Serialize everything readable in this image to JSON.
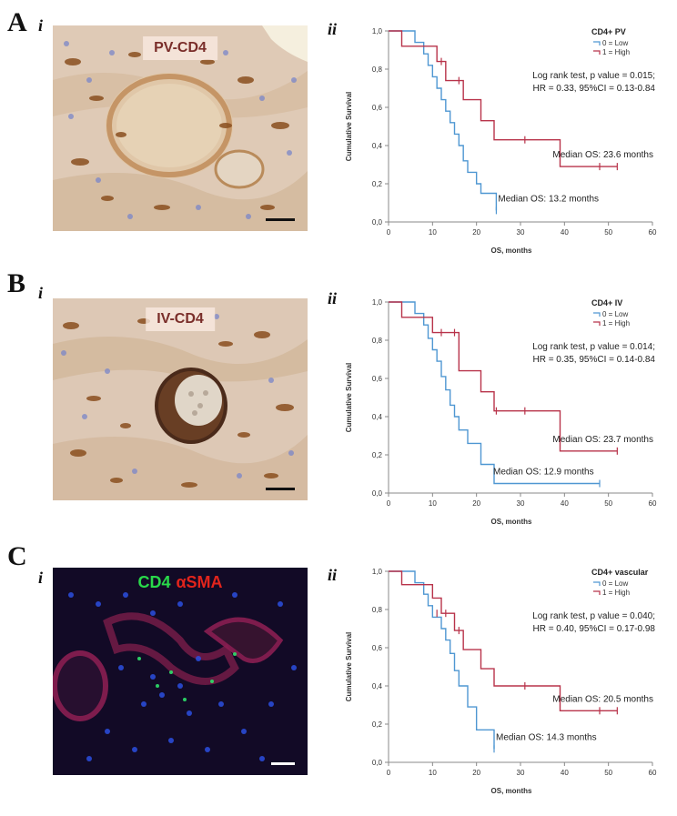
{
  "panels": [
    {
      "letter": "A",
      "micro_label": "i",
      "plot_label": "ii",
      "stain_label": "PV-CD4"
    },
    {
      "letter": "B",
      "micro_label": "i",
      "plot_label": "ii",
      "stain_label": "IV-CD4"
    },
    {
      "letter": "C",
      "micro_label": "i",
      "plot_label": "ii",
      "stain_label_green": "CD4",
      "stain_label_red": "αSMA"
    }
  ],
  "colors": {
    "low": "#4f97d2",
    "high": "#b8334a",
    "ihc_background": "#ddc9b6",
    "fluor_background": "#120a26"
  },
  "chart_data": [
    {
      "type": "line",
      "title": "CD4+ PV",
      "xlabel": "OS, months",
      "ylabel": "Cumulative Survival",
      "xlim": [
        0,
        60
      ],
      "ylim": [
        0,
        1.0
      ],
      "x_ticks": [
        "0",
        "10",
        "20",
        "30",
        "40",
        "50",
        "60"
      ],
      "y_ticks": [
        "0,0",
        "0,2",
        "0,4",
        "0,6",
        "0,8",
        "1,0"
      ],
      "legend": [
        "0 = Low",
        "1 = High"
      ],
      "legend_position": "top-right",
      "annotation": [
        "Log rank test, p value = 0.015;",
        "HR = 0.33, 95%CI = 0.13-0.84"
      ],
      "median_labels": {
        "high": "Median OS: 23.6 months",
        "low": "Median OS: 13.2 months"
      },
      "series": [
        {
          "name": "0 = Low",
          "color_key": "low",
          "x": [
            0,
            6,
            8,
            9,
            10,
            11,
            12,
            13,
            14,
            15,
            16,
            17,
            18,
            20,
            21,
            24.5
          ],
          "y": [
            1.0,
            0.94,
            0.88,
            0.82,
            0.76,
            0.7,
            0.64,
            0.58,
            0.52,
            0.46,
            0.4,
            0.32,
            0.26,
            0.2,
            0.15,
            0.06
          ],
          "censored": [
            {
              "x": 24.5,
              "y": 0.06
            }
          ]
        },
        {
          "name": "1 = High",
          "color_key": "high",
          "x": [
            0,
            3,
            11,
            13,
            17,
            21,
            24,
            39,
            52
          ],
          "y": [
            1.0,
            0.92,
            0.84,
            0.74,
            0.64,
            0.53,
            0.43,
            0.29,
            0.29
          ],
          "censored": [
            {
              "x": 12,
              "y": 0.84
            },
            {
              "x": 16,
              "y": 0.74
            },
            {
              "x": 31,
              "y": 0.43
            },
            {
              "x": 48,
              "y": 0.29
            },
            {
              "x": 52,
              "y": 0.29
            }
          ]
        }
      ]
    },
    {
      "type": "line",
      "title": "CD4+ IV",
      "xlabel": "OS, months",
      "ylabel": "Cumulative Survival",
      "xlim": [
        0,
        60
      ],
      "ylim": [
        0,
        1.0
      ],
      "x_ticks": [
        "0",
        "10",
        "20",
        "30",
        "40",
        "50",
        "60"
      ],
      "y_ticks": [
        "0,0",
        "0,2",
        "0,4",
        "0,6",
        "0,8",
        "1,0"
      ],
      "legend": [
        "0 = Low",
        "1 = High"
      ],
      "legend_position": "top-right",
      "annotation": [
        "Log rank test, p value = 0.014;",
        "HR = 0.35, 95%CI = 0.14-0.84"
      ],
      "median_labels": {
        "high": "Median OS: 23.7 months",
        "low": "Median OS: 12.9 months"
      },
      "series": [
        {
          "name": "0 = Low",
          "color_key": "low",
          "x": [
            0,
            6,
            8,
            9,
            10,
            11,
            12,
            13,
            14,
            15,
            16,
            18,
            21,
            24,
            48
          ],
          "y": [
            1.0,
            0.94,
            0.88,
            0.81,
            0.75,
            0.69,
            0.61,
            0.54,
            0.46,
            0.4,
            0.33,
            0.26,
            0.15,
            0.05,
            0.05
          ],
          "censored": [
            {
              "x": 48,
              "y": 0.05
            }
          ]
        },
        {
          "name": "1 = High",
          "color_key": "high",
          "x": [
            0,
            3,
            10,
            16,
            21,
            24,
            39,
            52
          ],
          "y": [
            1.0,
            0.92,
            0.84,
            0.64,
            0.53,
            0.43,
            0.22,
            0.22
          ],
          "censored": [
            {
              "x": 12,
              "y": 0.84
            },
            {
              "x": 15,
              "y": 0.84
            },
            {
              "x": 24.5,
              "y": 0.43
            },
            {
              "x": 31,
              "y": 0.43
            },
            {
              "x": 52,
              "y": 0.22
            }
          ]
        }
      ]
    },
    {
      "type": "line",
      "title": "CD4+ vascular",
      "xlabel": "OS, months",
      "ylabel": "Cumulative Survival",
      "xlim": [
        0,
        60
      ],
      "ylim": [
        0,
        1.0
      ],
      "x_ticks": [
        "0",
        "10",
        "20",
        "30",
        "40",
        "50",
        "60"
      ],
      "y_ticks": [
        "0,0",
        "0,2",
        "0,4",
        "0,6",
        "0,8",
        "1,0"
      ],
      "legend": [
        "0 = Low",
        "1 = High"
      ],
      "legend_position": "top-right",
      "annotation": [
        "Log rank test, p value = 0.040;",
        "HR = 0.40, 95%CI = 0.17-0.98"
      ],
      "median_labels": {
        "high": "Median OS: 20.5 months",
        "low": "Median OS: 14.3 months"
      },
      "series": [
        {
          "name": "0 = Low",
          "color_key": "low",
          "x": [
            0,
            6,
            8,
            9,
            10,
            12,
            13,
            14,
            15,
            16,
            18,
            20,
            24
          ],
          "y": [
            1.0,
            0.94,
            0.88,
            0.82,
            0.76,
            0.7,
            0.64,
            0.57,
            0.48,
            0.4,
            0.29,
            0.17,
            0.07
          ],
          "censored": [
            {
              "x": 24,
              "y": 0.07
            }
          ]
        },
        {
          "name": "1 = High",
          "color_key": "high",
          "x": [
            0,
            3,
            10,
            12,
            15,
            17,
            21,
            24,
            39,
            52
          ],
          "y": [
            1.0,
            0.93,
            0.86,
            0.78,
            0.69,
            0.59,
            0.49,
            0.4,
            0.27,
            0.27
          ],
          "censored": [
            {
              "x": 11,
              "y": 0.78
            },
            {
              "x": 13,
              "y": 0.78
            },
            {
              "x": 16,
              "y": 0.69
            },
            {
              "x": 31,
              "y": 0.4
            },
            {
              "x": 48,
              "y": 0.27
            },
            {
              "x": 52,
              "y": 0.27
            }
          ]
        }
      ]
    }
  ]
}
